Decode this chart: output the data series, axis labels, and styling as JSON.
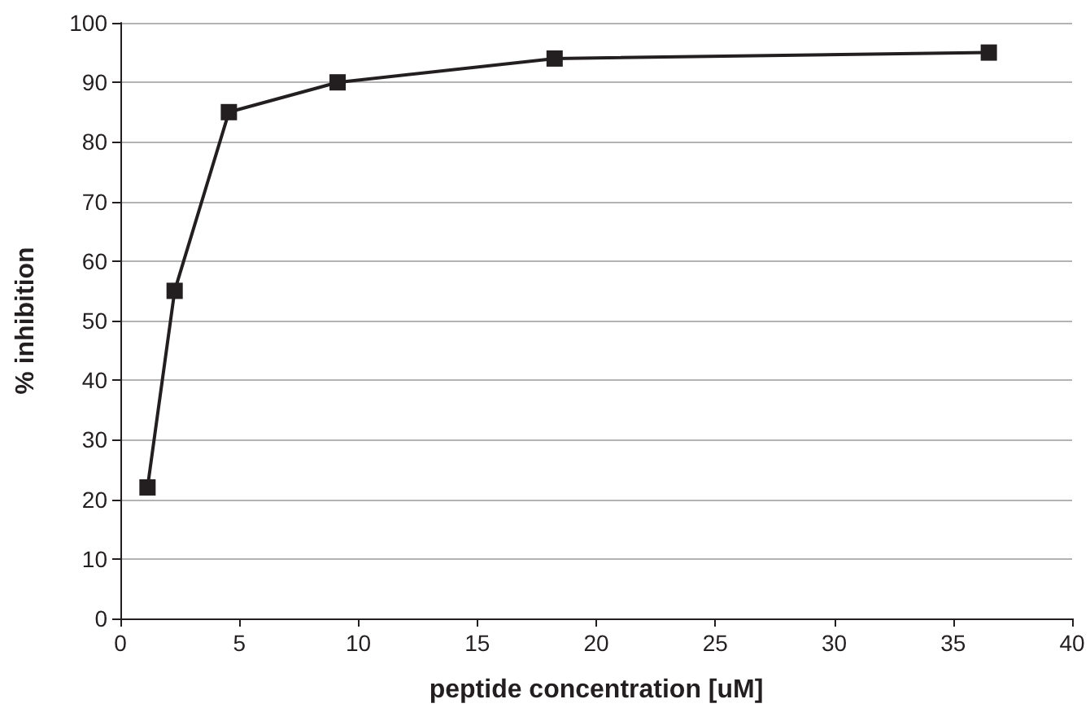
{
  "chart_data": {
    "type": "line",
    "xlabel": "peptide concentration [uM]",
    "ylabel": "% inhibition",
    "x": [
      1.14,
      2.28,
      4.56,
      9.13,
      18.25,
      36.5
    ],
    "series": [
      {
        "color": "#231f20",
        "values": [
          22,
          55,
          85,
          90,
          94,
          95
        ]
      }
    ],
    "xlim": [
      0,
      40
    ],
    "xticks": [
      0,
      5,
      10,
      15,
      20,
      25,
      30,
      35,
      40
    ],
    "ylim": [
      0,
      100
    ],
    "yticks": [
      0,
      10,
      20,
      30,
      40,
      50,
      60,
      70,
      80,
      90,
      100
    ],
    "grid": "y",
    "marker": "square",
    "line_style": "solid"
  }
}
